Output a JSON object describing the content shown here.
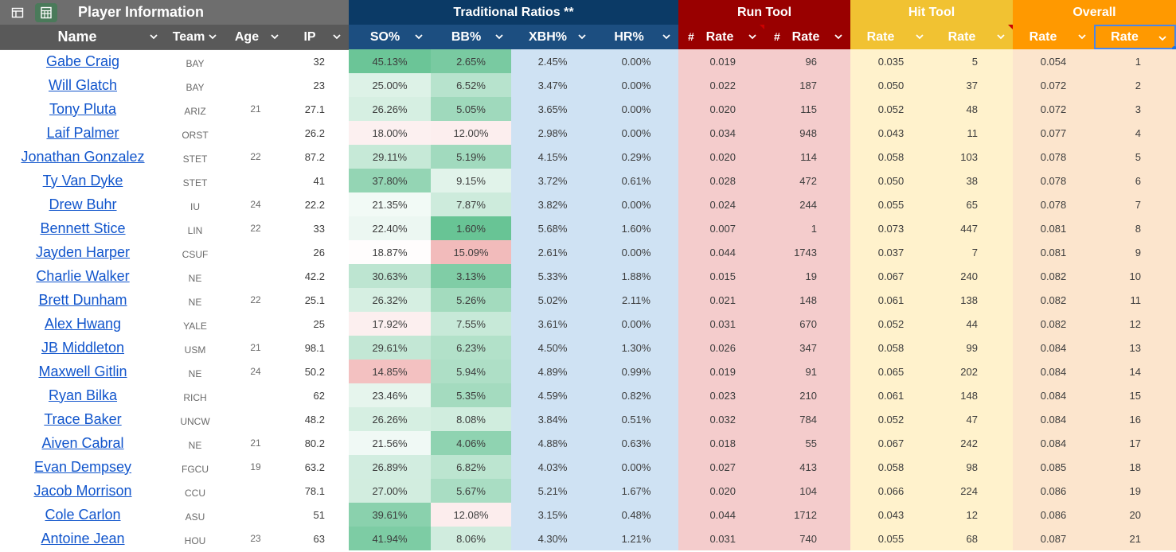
{
  "group_headers": {
    "player": "Player Information",
    "trad": "Traditional Ratios **",
    "run": "Run Tool",
    "hit": "Hit Tool",
    "overall": "Overall"
  },
  "toolbar_icons": [
    "table-view-icon",
    "spreadsheet-icon"
  ],
  "columns": {
    "name": "Name",
    "team": "Team",
    "age": "Age",
    "ip": "IP",
    "so": "SO%",
    "bb": "BB%",
    "xbh": "XBH%",
    "hr": "HR%",
    "run_hash": "#",
    "run_rate": "Rate",
    "run_hash2": "#",
    "run_rank": "Rate",
    "hit_rate": "Rate",
    "hit_rank": "Rate",
    "over_rate": "Rate",
    "over_rank": "Rate"
  },
  "colors": {
    "trad_header": "#0b3a66",
    "run_header": "#990000",
    "hit_header": "#f1c232",
    "overall_header": "#ff9900",
    "link": "#1155cc",
    "so_bb_scale_high": "#57bb8a",
    "so_bb_scale_low": "#e67c73"
  },
  "rows": [
    {
      "name": "Gabe Craig",
      "team": "BAY",
      "age": "",
      "ip": "32",
      "so": "45.13%",
      "bb": "2.65%",
      "xbh": "2.45%",
      "hr": "0.00%",
      "run_rate": "0.019",
      "run_rank": "96",
      "hit_rate": "0.035",
      "hit_rank": "5",
      "over_rate": "0.054",
      "over_rank": "1"
    },
    {
      "name": "Will Glatch",
      "team": "BAY",
      "age": "",
      "ip": "23",
      "so": "25.00%",
      "bb": "6.52%",
      "xbh": "3.47%",
      "hr": "0.00%",
      "run_rate": "0.022",
      "run_rank": "187",
      "hit_rate": "0.050",
      "hit_rank": "37",
      "over_rate": "0.072",
      "over_rank": "2"
    },
    {
      "name": "Tony Pluta",
      "team": "ARIZ",
      "age": "21",
      "ip": "27.1",
      "so": "26.26%",
      "bb": "5.05%",
      "xbh": "3.65%",
      "hr": "0.00%",
      "run_rate": "0.020",
      "run_rank": "115",
      "hit_rate": "0.052",
      "hit_rank": "48",
      "over_rate": "0.072",
      "over_rank": "3"
    },
    {
      "name": "Laif Palmer",
      "team": "ORST",
      "age": "",
      "ip": "26.2",
      "so": "18.00%",
      "bb": "12.00%",
      "xbh": "2.98%",
      "hr": "0.00%",
      "run_rate": "0.034",
      "run_rank": "948",
      "hit_rate": "0.043",
      "hit_rank": "11",
      "over_rate": "0.077",
      "over_rank": "4"
    },
    {
      "name": "Jonathan Gonzalez",
      "team": "STET",
      "age": "22",
      "ip": "87.2",
      "so": "29.11%",
      "bb": "5.19%",
      "xbh": "4.15%",
      "hr": "0.29%",
      "run_rate": "0.020",
      "run_rank": "114",
      "hit_rate": "0.058",
      "hit_rank": "103",
      "over_rate": "0.078",
      "over_rank": "5"
    },
    {
      "name": "Ty Van Dyke",
      "team": "STET",
      "age": "",
      "ip": "41",
      "so": "37.80%",
      "bb": "9.15%",
      "xbh": "3.72%",
      "hr": "0.61%",
      "run_rate": "0.028",
      "run_rank": "472",
      "hit_rate": "0.050",
      "hit_rank": "38",
      "over_rate": "0.078",
      "over_rank": "6"
    },
    {
      "name": "Drew Buhr",
      "team": "IU",
      "age": "24",
      "ip": "22.2",
      "so": "21.35%",
      "bb": "7.87%",
      "xbh": "3.82%",
      "hr": "0.00%",
      "run_rate": "0.024",
      "run_rank": "244",
      "hit_rate": "0.055",
      "hit_rank": "65",
      "over_rate": "0.078",
      "over_rank": "7"
    },
    {
      "name": "Bennett Stice",
      "team": "LIN",
      "age": "22",
      "ip": "33",
      "so": "22.40%",
      "bb": "1.60%",
      "xbh": "5.68%",
      "hr": "1.60%",
      "run_rate": "0.007",
      "run_rank": "1",
      "hit_rate": "0.073",
      "hit_rank": "447",
      "over_rate": "0.081",
      "over_rank": "8"
    },
    {
      "name": "Jayden Harper",
      "team": "CSUF",
      "age": "",
      "ip": "26",
      "so": "18.87%",
      "bb": "15.09%",
      "xbh": "2.61%",
      "hr": "0.00%",
      "run_rate": "0.044",
      "run_rank": "1743",
      "hit_rate": "0.037",
      "hit_rank": "7",
      "over_rate": "0.081",
      "over_rank": "9"
    },
    {
      "name": "Charlie Walker",
      "team": "NE",
      "age": "",
      "ip": "42.2",
      "so": "30.63%",
      "bb": "3.13%",
      "xbh": "5.33%",
      "hr": "1.88%",
      "run_rate": "0.015",
      "run_rank": "19",
      "hit_rate": "0.067",
      "hit_rank": "240",
      "over_rate": "0.082",
      "over_rank": "10"
    },
    {
      "name": "Brett Dunham",
      "team": "NE",
      "age": "22",
      "ip": "25.1",
      "so": "26.32%",
      "bb": "5.26%",
      "xbh": "5.02%",
      "hr": "2.11%",
      "run_rate": "0.021",
      "run_rank": "148",
      "hit_rate": "0.061",
      "hit_rank": "138",
      "over_rate": "0.082",
      "over_rank": "11"
    },
    {
      "name": "Alex Hwang",
      "team": "YALE",
      "age": "",
      "ip": "25",
      "so": "17.92%",
      "bb": "7.55%",
      "xbh": "3.61%",
      "hr": "0.00%",
      "run_rate": "0.031",
      "run_rank": "670",
      "hit_rate": "0.052",
      "hit_rank": "44",
      "over_rate": "0.082",
      "over_rank": "12"
    },
    {
      "name": "JB Middleton",
      "team": "USM",
      "age": "21",
      "ip": "98.1",
      "so": "29.61%",
      "bb": "6.23%",
      "xbh": "4.50%",
      "hr": "1.30%",
      "run_rate": "0.026",
      "run_rank": "347",
      "hit_rate": "0.058",
      "hit_rank": "99",
      "over_rate": "0.084",
      "over_rank": "13"
    },
    {
      "name": "Maxwell Gitlin",
      "team": "NE",
      "age": "24",
      "ip": "50.2",
      "so": "14.85%",
      "bb": "5.94%",
      "xbh": "4.89%",
      "hr": "0.99%",
      "run_rate": "0.019",
      "run_rank": "91",
      "hit_rate": "0.065",
      "hit_rank": "202",
      "over_rate": "0.084",
      "over_rank": "14"
    },
    {
      "name": "Ryan Bilka",
      "team": "RICH",
      "age": "",
      "ip": "62",
      "so": "23.46%",
      "bb": "5.35%",
      "xbh": "4.59%",
      "hr": "0.82%",
      "run_rate": "0.023",
      "run_rank": "210",
      "hit_rate": "0.061",
      "hit_rank": "148",
      "over_rate": "0.084",
      "over_rank": "15"
    },
    {
      "name": "Trace Baker",
      "team": "UNCW",
      "age": "",
      "ip": "48.2",
      "so": "26.26%",
      "bb": "8.08%",
      "xbh": "3.84%",
      "hr": "0.51%",
      "run_rate": "0.032",
      "run_rank": "784",
      "hit_rate": "0.052",
      "hit_rank": "47",
      "over_rate": "0.084",
      "over_rank": "16"
    },
    {
      "name": "Aiven Cabral",
      "team": "NE",
      "age": "21",
      "ip": "80.2",
      "so": "21.56%",
      "bb": "4.06%",
      "xbh": "4.88%",
      "hr": "0.63%",
      "run_rate": "0.018",
      "run_rank": "55",
      "hit_rate": "0.067",
      "hit_rank": "242",
      "over_rate": "0.084",
      "over_rank": "17"
    },
    {
      "name": "Evan Dempsey",
      "team": "FGCU",
      "age": "19",
      "ip": "63.2",
      "so": "26.89%",
      "bb": "6.82%",
      "xbh": "4.03%",
      "hr": "0.00%",
      "run_rate": "0.027",
      "run_rank": "413",
      "hit_rate": "0.058",
      "hit_rank": "98",
      "over_rate": "0.085",
      "over_rank": "18"
    },
    {
      "name": "Jacob Morrison",
      "team": "CCU",
      "age": "",
      "ip": "78.1",
      "so": "27.00%",
      "bb": "5.67%",
      "xbh": "5.21%",
      "hr": "1.67%",
      "run_rate": "0.020",
      "run_rank": "104",
      "hit_rate": "0.066",
      "hit_rank": "224",
      "over_rate": "0.086",
      "over_rank": "19"
    },
    {
      "name": "Cole Carlon",
      "team": "ASU",
      "age": "",
      "ip": "51",
      "so": "39.61%",
      "bb": "12.08%",
      "xbh": "3.15%",
      "hr": "0.48%",
      "run_rate": "0.044",
      "run_rank": "1712",
      "hit_rate": "0.043",
      "hit_rank": "12",
      "over_rate": "0.086",
      "over_rank": "20"
    },
    {
      "name": "Antoine Jean",
      "team": "HOU",
      "age": "23",
      "ip": "63",
      "so": "41.94%",
      "bb": "8.06%",
      "xbh": "4.30%",
      "hr": "1.21%",
      "run_rate": "0.031",
      "run_rank": "740",
      "hit_rate": "0.055",
      "hit_rank": "68",
      "over_rate": "0.087",
      "over_rank": "21"
    }
  ]
}
